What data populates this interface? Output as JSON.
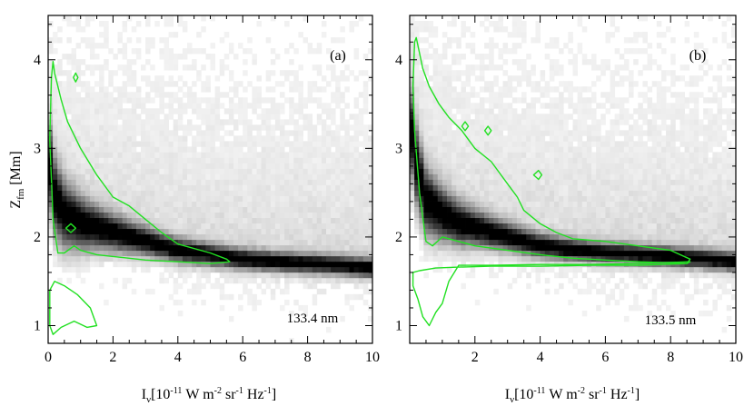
{
  "chart_data": [
    {
      "type": "heatmap",
      "panel_label": "(a)",
      "wavelength_label": "133.4 nm",
      "xlabel_main": "I",
      "xlabel_sub": "ν",
      "xlabel_units": "[10",
      "xlabel_units_exp": "-11",
      "xlabel_units_rest": " W m",
      "xlabel_m_exp": "-2",
      "xlabel_sr": " sr",
      "xlabel_sr_exp": "-1",
      "xlabel_hz": " Hz",
      "xlabel_hz_exp": "-1",
      "xlabel_close": "]",
      "ylabel_main": "Z",
      "ylabel_sub": "fm",
      "ylabel_units": " [Mm]",
      "xlim": [
        0,
        10
      ],
      "ylim": [
        0.8,
        4.5
      ],
      "xticks": [
        0,
        2,
        4,
        6,
        8,
        10
      ],
      "yticks": [
        1,
        2,
        3,
        4
      ],
      "ridge": {
        "x": [
          0.0,
          0.2,
          0.5,
          1.0,
          1.5,
          2.0,
          3.0,
          4.0,
          5.0,
          6.0,
          7.0,
          8.0,
          9.0,
          10.0
        ],
        "y": [
          2.9,
          2.45,
          2.25,
          2.15,
          2.1,
          2.05,
          1.95,
          1.85,
          1.8,
          1.75,
          1.72,
          1.7,
          1.68,
          1.65
        ]
      },
      "contours": [
        {
          "x": [
            0.05,
            0.1,
            0.15,
            0.2,
            0.4,
            0.6,
            1.0,
            1.5,
            2.0,
            2.5,
            3.0,
            3.5,
            4.0,
            5.0,
            5.5,
            5.6,
            5.0,
            4.0,
            3.0,
            2.5,
            2.0,
            1.5,
            1.0,
            0.8,
            0.5,
            0.3,
            0.15
          ],
          "y": [
            3.1,
            3.8,
            3.98,
            3.85,
            3.55,
            3.3,
            3.0,
            2.7,
            2.45,
            2.35,
            2.2,
            2.05,
            1.92,
            1.82,
            1.75,
            1.72,
            1.7,
            1.72,
            1.74,
            1.76,
            1.78,
            1.8,
            1.85,
            1.9,
            1.82,
            1.82,
            2.2
          ]
        },
        {
          "x": [
            0.05,
            0.2,
            0.5,
            0.9,
            1.3,
            1.5,
            1.2,
            0.8,
            0.4,
            0.15,
            0.05
          ],
          "y": [
            1.4,
            1.5,
            1.45,
            1.35,
            1.2,
            1.0,
            0.98,
            1.05,
            0.98,
            0.9,
            1.0
          ]
        },
        {
          "x": [
            0.55,
            0.7,
            0.85,
            0.7
          ],
          "y": [
            2.1,
            2.15,
            2.1,
            2.05
          ]
        },
        {
          "x": [
            0.85,
            0.92,
            0.85,
            0.78
          ],
          "y": [
            3.85,
            3.8,
            3.75,
            3.8
          ]
        }
      ]
    },
    {
      "type": "heatmap",
      "panel_label": "(b)",
      "wavelength_label": "133.5 nm",
      "xlabel_main": "I",
      "xlabel_sub": "ν",
      "xlabel_units": "[10",
      "xlabel_units_exp": "-11",
      "xlabel_units_rest": " W m",
      "xlabel_m_exp": "-2",
      "xlabel_sr": " sr",
      "xlabel_sr_exp": "-1",
      "xlabel_hz": " Hz",
      "xlabel_hz_exp": "-1",
      "xlabel_close": "]",
      "xlim": [
        0,
        10
      ],
      "ylim": [
        0.8,
        4.5
      ],
      "xticks": [
        2,
        4,
        6,
        8,
        10
      ],
      "yticks": [
        1,
        2,
        3,
        4
      ],
      "ridge": {
        "x": [
          0.0,
          0.2,
          0.5,
          1.0,
          1.5,
          2.0,
          3.0,
          4.0,
          5.0,
          6.0,
          7.0,
          8.0,
          9.0,
          10.0
        ],
        "y": [
          3.3,
          2.8,
          2.4,
          2.25,
          2.15,
          2.1,
          2.0,
          1.9,
          1.85,
          1.82,
          1.8,
          1.78,
          1.75,
          1.72
        ]
      },
      "contours": [
        {
          "x": [
            0.1,
            0.15,
            0.2,
            0.4,
            0.6,
            0.9,
            1.2,
            1.6,
            2.0,
            2.5,
            3.0,
            3.3,
            3.5,
            4.0,
            4.5,
            5.0,
            6.0,
            7.0,
            8.0,
            8.6,
            8.5,
            7.0,
            6.0,
            5.0,
            4.0,
            3.0,
            2.0,
            1.5,
            1.0,
            0.7,
            0.5,
            0.3,
            0.15
          ],
          "y": [
            3.7,
            4.2,
            4.25,
            3.9,
            3.7,
            3.5,
            3.35,
            3.2,
            3.0,
            2.85,
            2.6,
            2.45,
            2.3,
            2.15,
            2.05,
            1.98,
            1.95,
            1.9,
            1.85,
            1.75,
            1.7,
            1.72,
            1.74,
            1.76,
            1.8,
            1.85,
            1.9,
            1.95,
            2.0,
            1.9,
            1.95,
            2.5,
            3.2
          ]
        },
        {
          "x": [
            0.1,
            0.3,
            0.8,
            1.5,
            2.5,
            4.0,
            5.5,
            7.0,
            8.5,
            8.6,
            7.0,
            5.5,
            4.0,
            2.5,
            1.5,
            1.2,
            1.0,
            0.8,
            0.6,
            0.4,
            0.25,
            0.1
          ],
          "y": [
            1.6,
            1.62,
            1.65,
            1.66,
            1.67,
            1.67,
            1.68,
            1.68,
            1.7,
            1.72,
            1.7,
            1.69,
            1.69,
            1.68,
            1.68,
            1.5,
            1.25,
            1.15,
            1.0,
            1.1,
            1.3,
            1.45
          ]
        },
        {
          "x": [
            1.6,
            1.7,
            1.8,
            1.7
          ],
          "y": [
            3.25,
            3.3,
            3.25,
            3.2
          ]
        },
        {
          "x": [
            2.3,
            2.4,
            2.5,
            2.4
          ],
          "y": [
            3.2,
            3.25,
            3.2,
            3.15
          ]
        },
        {
          "x": [
            3.8,
            3.95,
            4.05,
            3.95
          ],
          "y": [
            2.7,
            2.75,
            2.7,
            2.65
          ]
        }
      ]
    }
  ],
  "colors": {
    "contour": "#22e022",
    "heat_dark": "#000000",
    "background": "#ffffff",
    "axis": "#000000"
  }
}
